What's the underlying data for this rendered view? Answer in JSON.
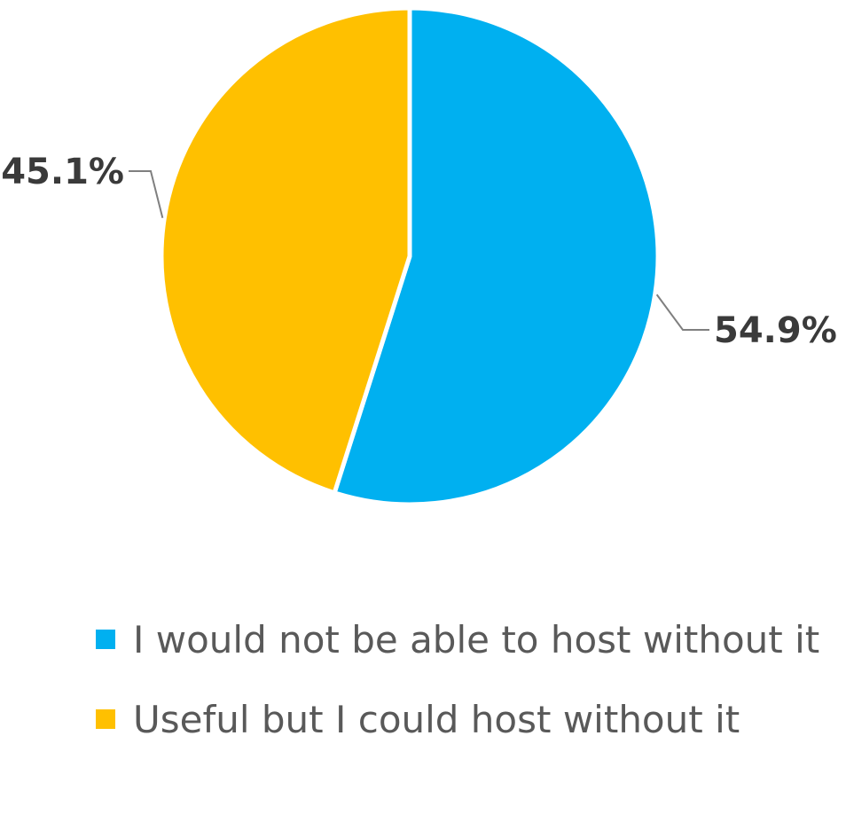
{
  "chart_data": {
    "type": "pie",
    "slices": [
      {
        "label": "I would not be able to host without it",
        "value": 54.9,
        "display": "54.9%",
        "color": "#00B0F0"
      },
      {
        "label": "Useful but I could host without it",
        "value": 45.1,
        "display": "45.1%",
        "color": "#FFC000"
      }
    ],
    "legend_position": "bottom"
  },
  "legend": {
    "items": [
      {
        "label": "I would not be able to host without it",
        "color": "#00B0F0"
      },
      {
        "label": "Useful but I could host without it",
        "color": "#FFC000"
      }
    ]
  }
}
